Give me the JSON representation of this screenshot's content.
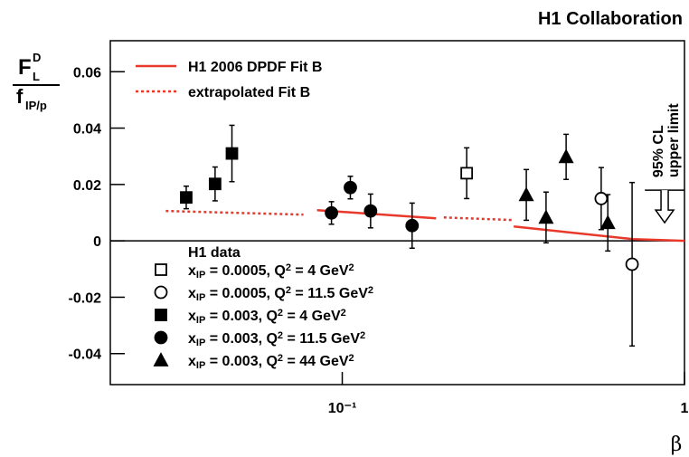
{
  "chart_data": {
    "type": "scatter",
    "title": "H1 Collaboration",
    "x_label": "β",
    "y_label": {
      "numerator": "F",
      "numerator_sub": "L",
      "numerator_sup": "D",
      "denominator": "f",
      "denominator_sub": "IP/p"
    },
    "log_x": true,
    "xlim": [
      0.021,
      1
    ],
    "xticks": [
      {
        "value": 0.1,
        "label": "10⁻¹"
      },
      1
    ],
    "ylim": [
      -0.051,
      0.071
    ],
    "yticks": [
      -0.04,
      -0.02,
      0,
      0.02,
      0.04,
      0.06
    ],
    "legend_title": "H1 data",
    "series": [
      {
        "name": [
          {
            "text": "x"
          },
          {
            "sub": "IP"
          },
          {
            "text": " = 0.0005, Q"
          },
          {
            "sup": "2"
          },
          {
            "text": " = 4 GeV"
          },
          {
            "sup": "2"
          }
        ],
        "marker": "open-square",
        "color": "#000000",
        "x": [
          0.231
        ],
        "values": [
          0.024
        ],
        "errors": [
          0.009
        ]
      },
      {
        "name": [
          {
            "text": "x"
          },
          {
            "sub": "IP"
          },
          {
            "text": " = 0.0005, Q"
          },
          {
            "sup": "2"
          },
          {
            "text": " = 11.5 GeV"
          },
          {
            "sup": "2"
          }
        ],
        "marker": "open-circle",
        "color": "#000000",
        "x": [
          0.571,
          0.703
        ],
        "values": [
          0.015,
          -0.0083
        ],
        "errors": [
          0.011,
          0.029
        ]
      },
      {
        "name": [
          {
            "text": "x"
          },
          {
            "sub": "IP"
          },
          {
            "text": " = 0.003,   Q"
          },
          {
            "sup": "2"
          },
          {
            "text": " = 4 GeV"
          },
          {
            "sup": "2"
          }
        ],
        "marker": "filled-square",
        "color": "#000000",
        "x": [
          0.035,
          0.0425,
          0.0476
        ],
        "values": [
          0.0154,
          0.0202,
          0.031
        ],
        "errors": [
          0.004,
          0.006,
          0.01
        ]
      },
      {
        "name": [
          {
            "text": "x"
          },
          {
            "sub": "IP"
          },
          {
            "text": " = 0.003,   Q"
          },
          {
            "sup": "2"
          },
          {
            "text": " = 11.5 GeV"
          },
          {
            "sup": "2"
          }
        ],
        "marker": "filled-circle",
        "color": "#000000",
        "x": [
          0.093,
          0.1056,
          0.121,
          0.16
        ],
        "values": [
          0.0099,
          0.0189,
          0.0106,
          0.0054
        ],
        "errors": [
          0.004,
          0.004,
          0.006,
          0.008
        ]
      },
      {
        "name": [
          {
            "text": "x"
          },
          {
            "sub": "IP"
          },
          {
            "text": " = 0.003,   Q"
          },
          {
            "sup": "2"
          },
          {
            "text": " = 44 GeV"
          },
          {
            "sup": "2"
          }
        ],
        "marker": "filled-triangle",
        "color": "#000000",
        "x": [
          0.345,
          0.394,
          0.451,
          0.597
        ],
        "values": [
          0.0163,
          0.0083,
          0.0298,
          0.0064
        ],
        "errors": [
          0.009,
          0.009,
          0.008,
          0.01
        ]
      }
    ],
    "lines": [
      {
        "name": "H1 2006 DPDF Fit B",
        "style": "solid",
        "color": "#e8392b",
        "x": [
          0.0844,
          0.188,
          null,
          0.317,
          0.708,
          1
        ],
        "values": [
          0.0109,
          0.008,
          null,
          0.0051,
          0.0006,
          0
        ]
      },
      {
        "name": "extrapolated Fit B",
        "style": "dotted",
        "color": "#e8392b",
        "x": [
          0.0305,
          0.077,
          null,
          0.198,
          0.313
        ],
        "values": [
          0.0106,
          0.0093,
          null,
          0.0083,
          0.0074
        ]
      }
    ],
    "upper_limit": {
      "label_line1": "95% CL",
      "label_line2": "upper limit",
      "x": [
        0.766,
        1
      ],
      "value": 0.018,
      "arrow_x": 0.875
    }
  }
}
